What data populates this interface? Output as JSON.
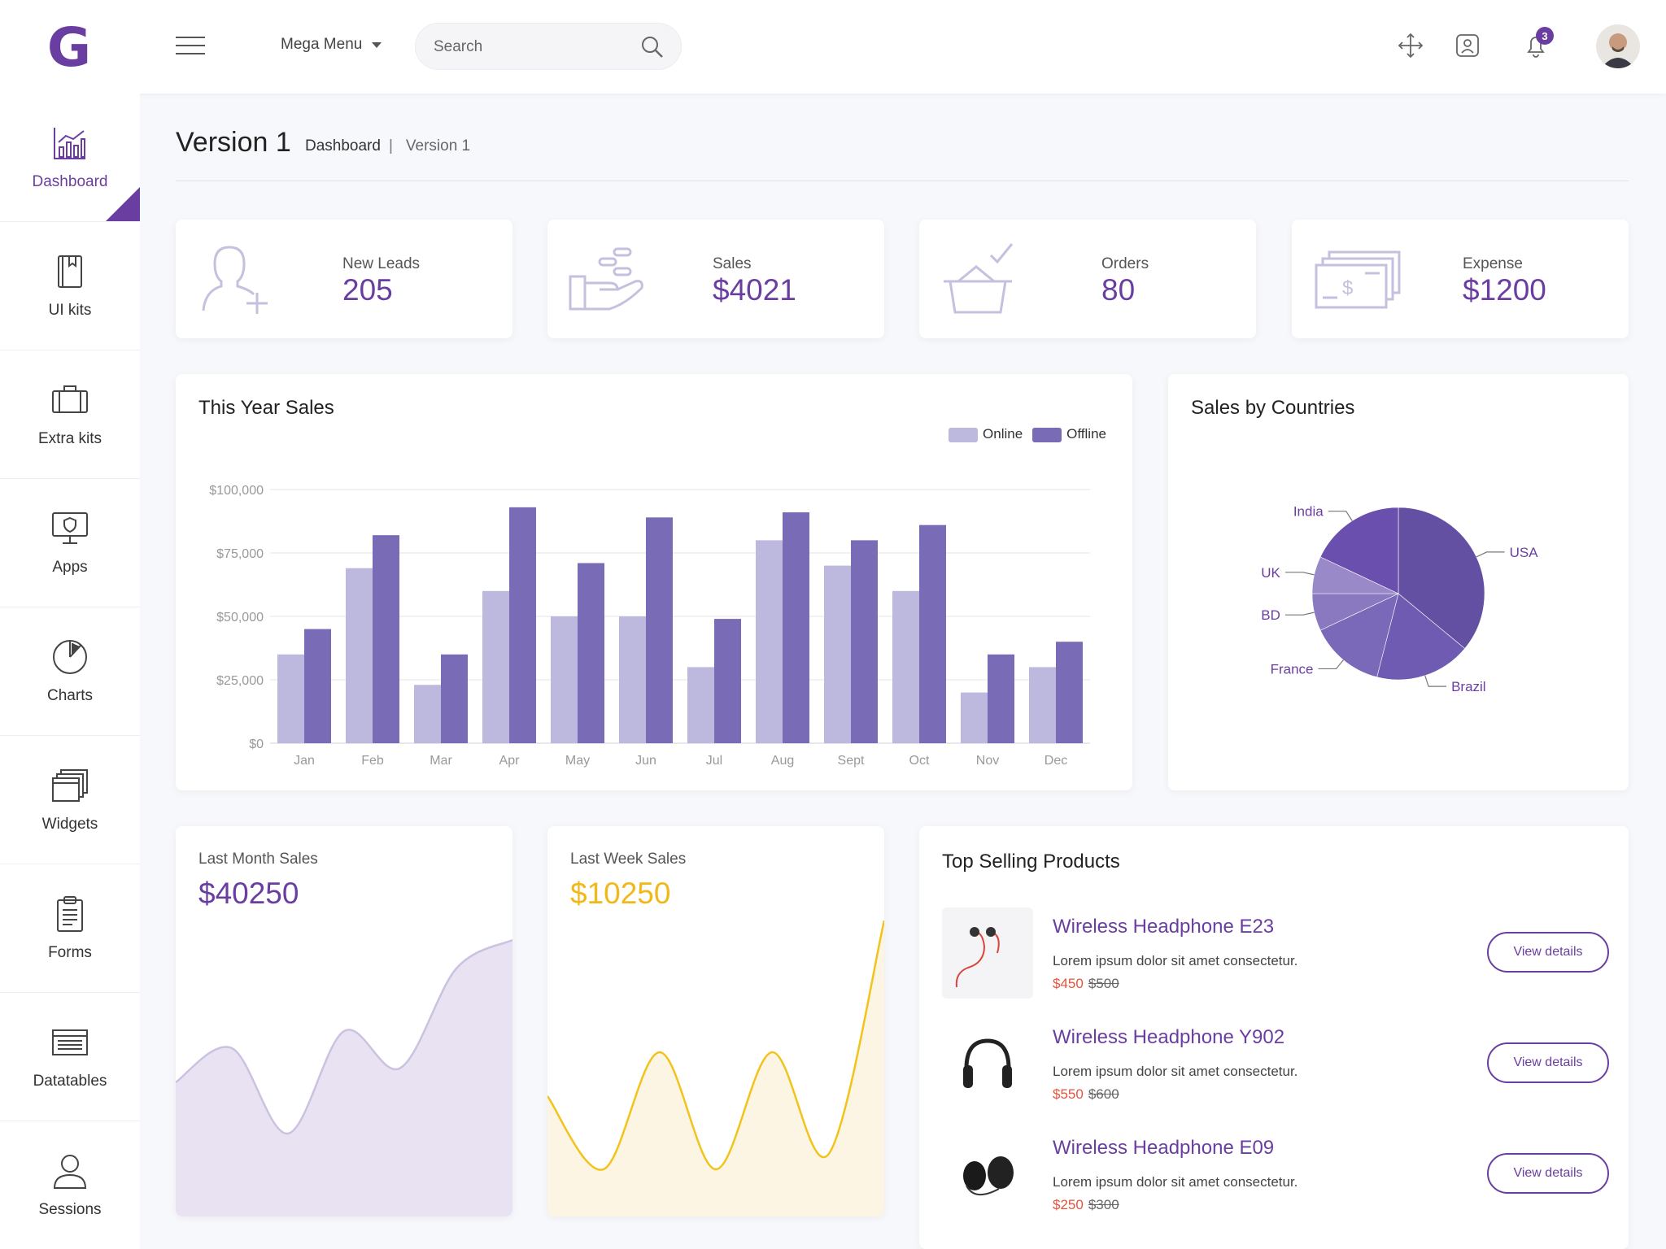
{
  "header": {
    "logo": "G",
    "mega_menu": "Mega Menu",
    "search_placeholder": "Search",
    "notification_count": "3"
  },
  "sidebar": {
    "items": [
      {
        "label": "Dashboard",
        "icon": "bar-chart-icon",
        "active": true
      },
      {
        "label": "UI kits",
        "icon": "book-icon"
      },
      {
        "label": "Extra kits",
        "icon": "briefcase-icon"
      },
      {
        "label": "Apps",
        "icon": "monitor-shield-icon"
      },
      {
        "label": "Charts",
        "icon": "pie-chart-icon"
      },
      {
        "label": "Widgets",
        "icon": "stacked-windows-icon"
      },
      {
        "label": "Forms",
        "icon": "clipboard-icon"
      },
      {
        "label": "Datatables",
        "icon": "table-icon"
      },
      {
        "label": "Sessions",
        "icon": "user-icon"
      }
    ]
  },
  "page": {
    "title": "Version 1",
    "breadcrumb": {
      "parent": "Dashboard",
      "separator": "|",
      "current": "Version 1"
    }
  },
  "stats": [
    {
      "label": "New Leads",
      "value": "205",
      "icon": "add-user-icon"
    },
    {
      "label": "Sales",
      "value": "$4021",
      "icon": "hand-coins-icon"
    },
    {
      "label": "Orders",
      "value": "80",
      "icon": "basket-check-icon"
    },
    {
      "label": "Expense",
      "value": "$1200",
      "icon": "cash-stack-icon"
    }
  ],
  "colors": {
    "accent": "#6a3ea1",
    "online": "#bdb8dd",
    "offline": "#7a6bb6",
    "yellow": "#f2c31a",
    "red": "#e5533c"
  },
  "sales_chart_title": "This Year Sales",
  "countries_chart_title": "Sales by Countries",
  "chart_data": [
    {
      "type": "bar",
      "title": "This Year Sales",
      "categories": [
        "Jan",
        "Feb",
        "Mar",
        "Apr",
        "May",
        "Jun",
        "Jul",
        "Aug",
        "Sept",
        "Oct",
        "Nov",
        "Dec"
      ],
      "series": [
        {
          "name": "Online",
          "values": [
            35000,
            69000,
            23000,
            60000,
            50000,
            50000,
            30000,
            80000,
            70000,
            60000,
            20000,
            30000
          ]
        },
        {
          "name": "Offline",
          "values": [
            45000,
            82000,
            35000,
            93000,
            71000,
            89000,
            49000,
            91000,
            80000,
            86000,
            35000,
            40000
          ]
        }
      ],
      "yticks": [
        "$0",
        "$25,000",
        "$50,000",
        "$75,000",
        "$100,000"
      ],
      "ylim": [
        0,
        100000
      ],
      "grid": true,
      "legend": "top-right"
    },
    {
      "type": "pie",
      "title": "Sales by Countries",
      "labels": [
        "USA",
        "Brazil",
        "France",
        "BD",
        "UK",
        "India"
      ],
      "values": [
        36,
        18,
        14,
        7,
        7,
        18
      ],
      "colors": [
        "#6450a3",
        "#6f5cb2",
        "#7a68b8",
        "#8a78c1",
        "#9a89c9",
        "#6a4fae"
      ]
    },
    {
      "type": "area",
      "title": "Last Month Sales",
      "values": [
        30,
        42,
        12,
        48,
        35,
        70,
        80
      ],
      "ylim": [
        0,
        100
      ]
    },
    {
      "type": "line",
      "title": "Last Week Sales",
      "values": [
        30,
        5,
        45,
        5,
        45,
        10,
        90
      ],
      "ylim": [
        0,
        100
      ]
    }
  ],
  "mini_cards": [
    {
      "label": "Last Month Sales",
      "value": "$40250"
    },
    {
      "label": "Last Week Sales",
      "value": "$10250"
    }
  ],
  "top_products": {
    "title": "Top Selling Products",
    "items": [
      {
        "name": "Wireless Headphone E23",
        "desc": "Lorem ipsum dolor sit amet consectetur.",
        "price": "$450",
        "old_price": "$500",
        "button": "View details"
      },
      {
        "name": "Wireless Headphone Y902",
        "desc": "Lorem ipsum dolor sit amet consectetur.",
        "price": "$550",
        "old_price": "$600",
        "button": "View details"
      },
      {
        "name": "Wireless Headphone E09",
        "desc": "Lorem ipsum dolor sit amet consectetur.",
        "price": "$250",
        "old_price": "$300",
        "button": "View details"
      }
    ]
  }
}
